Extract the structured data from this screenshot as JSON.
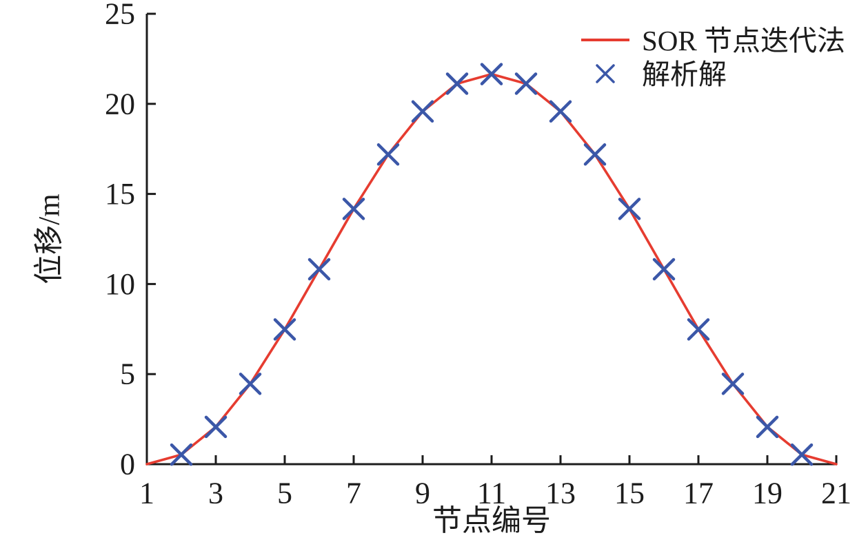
{
  "chart_data": {
    "type": "line",
    "title": "",
    "xlabel": "节点编号",
    "ylabel": "位移/m",
    "xlim": [
      1,
      21
    ],
    "ylim": [
      0,
      25
    ],
    "xticks": [
      1,
      3,
      5,
      7,
      9,
      11,
      13,
      15,
      17,
      19,
      21
    ],
    "yticks": [
      0,
      5,
      10,
      15,
      20,
      25
    ],
    "grid": false,
    "background_color": "#ffffff",
    "axis_color": "#1c1c1c",
    "legend_position": "upper-right-inside",
    "series": [
      {
        "name": "SOR 节点迭代法",
        "type": "line",
        "color": "#e63c30",
        "x": [
          1,
          2,
          3,
          4,
          5,
          6,
          7,
          8,
          9,
          10,
          11,
          12,
          13,
          14,
          15,
          16,
          17,
          18,
          19,
          20,
          21
        ],
        "values": [
          0,
          0.53,
          2.07,
          4.46,
          7.48,
          10.82,
          14.17,
          17.19,
          19.58,
          21.12,
          21.65,
          21.12,
          19.58,
          17.19,
          14.17,
          10.82,
          7.48,
          4.46,
          2.07,
          0.53,
          0
        ]
      },
      {
        "name": "解析解",
        "type": "scatter",
        "marker": "x",
        "color": "#3b57a8",
        "x": [
          2,
          3,
          4,
          5,
          6,
          7,
          8,
          9,
          10,
          11,
          12,
          13,
          14,
          15,
          16,
          17,
          18,
          19,
          20
        ],
        "values": [
          0.53,
          2.07,
          4.46,
          7.48,
          10.82,
          14.17,
          17.19,
          19.58,
          21.12,
          21.65,
          21.12,
          19.58,
          17.19,
          14.17,
          10.82,
          7.48,
          4.46,
          2.07,
          0.53
        ]
      }
    ]
  }
}
